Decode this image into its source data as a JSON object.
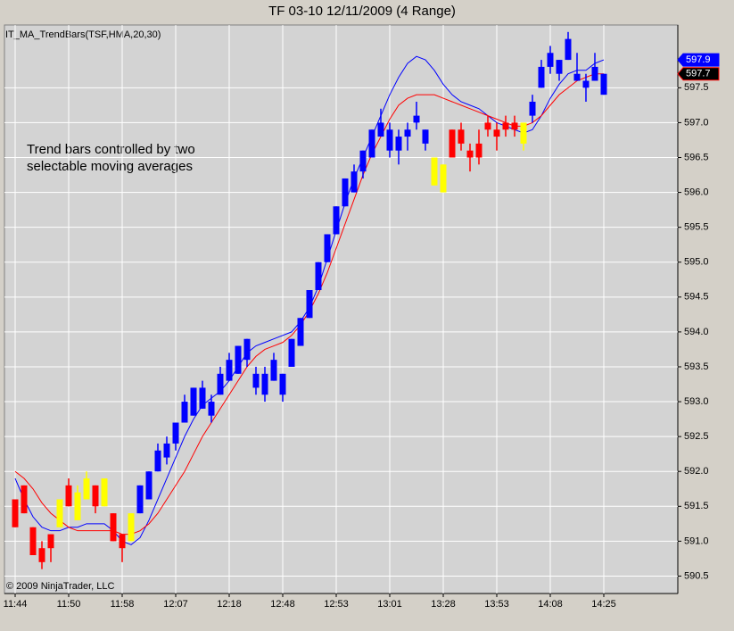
{
  "chart_data": {
    "type": "candlestick",
    "title": "TF 03-10  12/11/2009 (4 Range)",
    "indicator_label": "IT_MA_TrendBars(TSF,HMA,20,30)",
    "annotation": [
      "Trend bars controlled by two",
      "selectable moving averages"
    ],
    "copyright": "© 2009 NinjaTrader, LLC",
    "categories": [
      "11:44",
      null,
      null,
      null,
      null,
      null,
      "11:50",
      null,
      null,
      null,
      null,
      null,
      "11:58",
      null,
      null,
      null,
      null,
      null,
      "12:07",
      null,
      null,
      null,
      null,
      null,
      "12:18",
      null,
      null,
      null,
      null,
      null,
      "12:48",
      null,
      null,
      null,
      null,
      null,
      "12:53",
      null,
      null,
      null,
      null,
      null,
      "13:01",
      null,
      null,
      null,
      null,
      null,
      "13:28",
      null,
      null,
      null,
      null,
      null,
      "13:53",
      null,
      null,
      null,
      null,
      null,
      "14:08",
      null,
      null,
      null,
      null,
      null,
      "14:25"
    ],
    "open": [
      591.6,
      591.8,
      591.2,
      590.9,
      591.1,
      591.2,
      591.8,
      591.3,
      591.6,
      591.8,
      591.5,
      591.4,
      591.1,
      591.0,
      591.4,
      591.6,
      592.0,
      592.2,
      592.4,
      592.7,
      592.8,
      593.2,
      593.0,
      593.1,
      593.3,
      593.4,
      593.9,
      593.4,
      593.4,
      593.3,
      593.4,
      593.5,
      593.8,
      594.2,
      594.6,
      595.0,
      595.4,
      595.8,
      596.0,
      596.3,
      596.5,
      596.8,
      596.9,
      596.8,
      596.8,
      597.0,
      596.9,
      596.5,
      596.4,
      596.9,
      596.9,
      596.6,
      596.7,
      597.0,
      596.9,
      596.9,
      597.0,
      596.7,
      597.1,
      597.5,
      597.8,
      597.9,
      597.9,
      597.7,
      597.6,
      597.6,
      597.7
    ],
    "high": [
      591.6,
      591.8,
      591.2,
      591.0,
      591.1,
      591.6,
      591.9,
      591.8,
      592.0,
      591.8,
      591.9,
      591.4,
      591.1,
      591.4,
      591.8,
      592.0,
      592.4,
      592.5,
      592.7,
      593.1,
      593.2,
      593.3,
      593.1,
      593.5,
      593.7,
      593.8,
      593.9,
      593.5,
      593.5,
      593.7,
      593.4,
      593.9,
      594.2,
      594.6,
      595.0,
      595.4,
      595.8,
      596.2,
      596.4,
      596.6,
      596.9,
      597.2,
      597.0,
      596.9,
      597.0,
      597.3,
      596.9,
      596.5,
      596.4,
      596.9,
      597.0,
      596.7,
      596.9,
      597.1,
      597.0,
      597.1,
      597.1,
      597.0,
      597.4,
      597.9,
      598.1,
      597.9,
      598.3,
      598.0,
      597.7,
      598.0,
      597.7
    ],
    "low": [
      591.2,
      591.4,
      590.8,
      590.6,
      590.7,
      591.2,
      591.5,
      591.3,
      591.6,
      591.4,
      591.5,
      591.0,
      590.7,
      591.0,
      591.4,
      591.6,
      592.0,
      592.1,
      592.3,
      592.7,
      592.8,
      592.9,
      592.7,
      593.1,
      593.3,
      593.4,
      593.5,
      593.1,
      593.0,
      593.3,
      593.0,
      593.5,
      593.8,
      594.2,
      594.6,
      595.0,
      595.4,
      595.8,
      596.0,
      596.2,
      596.5,
      596.8,
      596.5,
      596.4,
      596.6,
      596.9,
      596.6,
      596.1,
      596.0,
      596.5,
      596.6,
      596.3,
      596.4,
      596.8,
      596.6,
      596.8,
      596.8,
      596.6,
      597.0,
      597.5,
      597.7,
      597.6,
      597.9,
      597.6,
      597.3,
      597.6,
      597.4
    ],
    "close": [
      591.2,
      591.4,
      590.8,
      590.7,
      590.9,
      591.6,
      591.5,
      591.7,
      591.9,
      591.5,
      591.9,
      591.0,
      590.9,
      591.4,
      591.8,
      592.0,
      592.3,
      592.4,
      592.7,
      593.0,
      593.2,
      592.9,
      592.8,
      593.4,
      593.6,
      593.8,
      593.6,
      593.2,
      593.1,
      593.6,
      593.1,
      593.9,
      594.2,
      594.6,
      595.0,
      595.4,
      595.8,
      596.2,
      596.3,
      596.6,
      596.9,
      597.0,
      596.6,
      596.6,
      596.9,
      597.1,
      596.7,
      596.1,
      596.0,
      596.5,
      596.7,
      596.5,
      596.5,
      596.9,
      596.8,
      597.0,
      596.9,
      597.0,
      597.3,
      597.8,
      598.0,
      597.7,
      598.2,
      597.6,
      597.5,
      597.8,
      597.4
    ],
    "bar_colors": [
      "#ff0000",
      "#ff0000",
      "#ff0000",
      "#ff0000",
      "#ff0000",
      "#ffff00",
      "#ff0000",
      "#ffff00",
      "#ffff00",
      "#ff0000",
      "#ffff00",
      "#ff0000",
      "#ff0000",
      "#ffff00",
      "#0000ff",
      "#0000ff",
      "#0000ff",
      "#0000ff",
      "#0000ff",
      "#0000ff",
      "#0000ff",
      "#0000ff",
      "#0000ff",
      "#0000ff",
      "#0000ff",
      "#0000ff",
      "#0000ff",
      "#0000ff",
      "#0000ff",
      "#0000ff",
      "#0000ff",
      "#0000ff",
      "#0000ff",
      "#0000ff",
      "#0000ff",
      "#0000ff",
      "#0000ff",
      "#0000ff",
      "#0000ff",
      "#0000ff",
      "#0000ff",
      "#0000ff",
      "#0000ff",
      "#0000ff",
      "#0000ff",
      "#0000ff",
      "#0000ff",
      "#ffff00",
      "#ffff00",
      "#ff0000",
      "#ff0000",
      "#ff0000",
      "#ff0000",
      "#ff0000",
      "#ff0000",
      "#ff0000",
      "#ff0000",
      "#ffff00",
      "#0000ff",
      "#0000ff",
      "#0000ff",
      "#0000ff",
      "#0000ff",
      "#0000ff",
      "#0000ff",
      "#0000ff",
      "#0000ff"
    ],
    "lines": [
      {
        "color": "#0000ff",
        "last_label": "597.9",
        "values": [
          591.9,
          591.6,
          591.35,
          591.2,
          591.15,
          591.15,
          591.2,
          591.2,
          591.25,
          591.25,
          591.25,
          591.15,
          591.0,
          590.95,
          591.05,
          591.3,
          591.6,
          591.9,
          592.2,
          592.5,
          592.75,
          592.95,
          593.05,
          593.15,
          593.3,
          593.5,
          593.7,
          593.8,
          593.85,
          593.9,
          593.95,
          594.0,
          594.15,
          594.35,
          594.65,
          595.05,
          595.45,
          595.85,
          596.2,
          596.5,
          596.8,
          597.1,
          597.4,
          597.65,
          597.85,
          597.95,
          597.9,
          597.75,
          597.55,
          597.4,
          597.3,
          597.25,
          597.2,
          597.1,
          597.0,
          596.95,
          596.9,
          596.85,
          596.9,
          597.1,
          597.35,
          597.55,
          597.7,
          597.75,
          597.75,
          597.85,
          597.9
        ]
      },
      {
        "color": "#ff0000",
        "last_label": "597.7",
        "values": [
          592.0,
          591.9,
          591.75,
          591.55,
          591.4,
          591.3,
          591.2,
          591.15,
          591.15,
          591.15,
          591.15,
          591.15,
          591.1,
          591.1,
          591.15,
          591.25,
          591.4,
          591.6,
          591.8,
          592.0,
          592.25,
          592.5,
          592.7,
          592.9,
          593.1,
          593.3,
          593.5,
          593.65,
          593.75,
          593.8,
          593.85,
          593.95,
          594.1,
          594.3,
          594.55,
          594.85,
          595.2,
          595.55,
          595.9,
          596.25,
          596.55,
          596.8,
          597.05,
          597.25,
          597.35,
          597.4,
          597.4,
          597.4,
          597.35,
          597.3,
          597.25,
          597.2,
          597.15,
          597.1,
          597.05,
          597.0,
          596.95,
          596.95,
          597.0,
          597.1,
          597.25,
          597.4,
          597.5,
          597.6,
          597.65,
          597.7,
          597.7
        ]
      }
    ],
    "ylim": [
      590.25,
      598.4
    ],
    "yticks": [
      590.5,
      {
        "value": 591,
        "label": "591.0"
      },
      591.5,
      {
        "value": 592,
        "label": "592.0"
      },
      592.5,
      {
        "value": 593,
        "label": "593.0"
      },
      593.5,
      {
        "value": 594,
        "label": "594.0"
      },
      594.5,
      {
        "value": 595,
        "label": "595.0"
      },
      595.5,
      {
        "value": 596,
        "label": "596.0"
      },
      596.5,
      {
        "value": 597,
        "label": "597.0"
      },
      597.5
    ],
    "grid": true
  }
}
